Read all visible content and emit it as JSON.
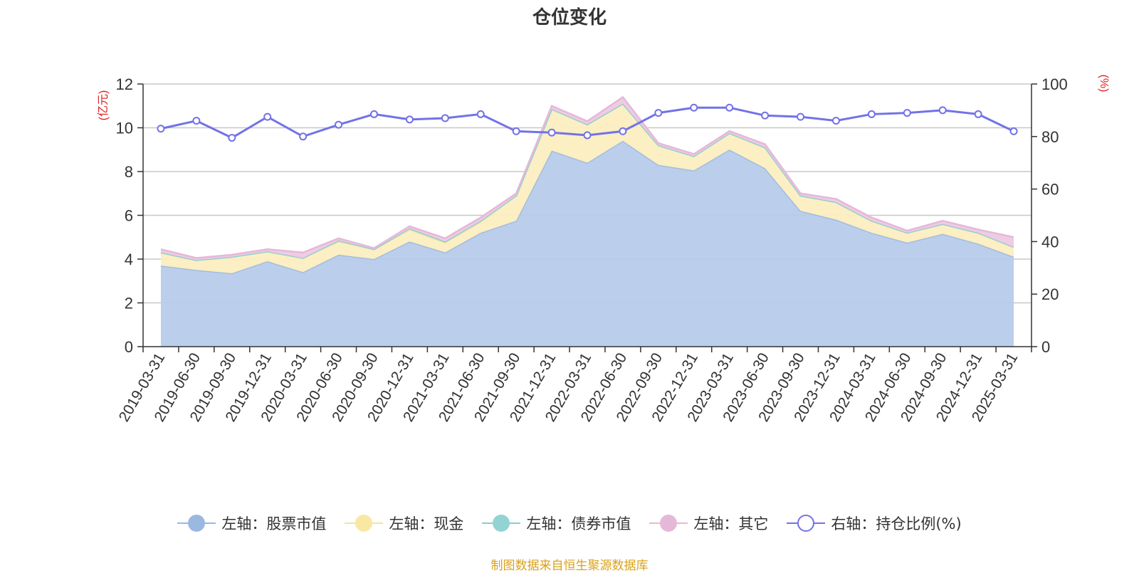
{
  "title": "仓位变化",
  "source": "制图数据来自恒生聚源数据库",
  "chart_data": {
    "type": "area",
    "title": "仓位变化",
    "left_axis": {
      "label": "(亿元)",
      "min": 0,
      "max": 12,
      "ticks": [
        0,
        2,
        4,
        6,
        8,
        10,
        12
      ]
    },
    "right_axis": {
      "label": "(%)",
      "min": 0,
      "max": 100,
      "ticks": [
        0,
        20,
        40,
        60,
        80,
        100
      ]
    },
    "grid": true,
    "legend_position": "bottom",
    "x": [
      "2019-03-31",
      "2019-06-30",
      "2019-09-30",
      "2019-12-31",
      "2020-03-31",
      "2020-06-30",
      "2020-09-30",
      "2020-12-31",
      "2021-03-31",
      "2021-06-30",
      "2021-09-30",
      "2021-12-31",
      "2022-03-31",
      "2022-06-30",
      "2022-09-30",
      "2022-12-31",
      "2023-03-31",
      "2023-06-30",
      "2023-09-30",
      "2023-12-31",
      "2024-03-31",
      "2024-06-30",
      "2024-09-30",
      "2024-12-31",
      "2025-03-31"
    ],
    "series": [
      {
        "name": "左轴：股票市值",
        "axis": "left",
        "kind": "stacked-area",
        "color": "#9bb8e0",
        "fill": "#b7cceb",
        "values": [
          3.7,
          3.5,
          3.35,
          3.9,
          3.4,
          4.2,
          4.0,
          4.8,
          4.3,
          5.2,
          5.75,
          8.95,
          8.4,
          9.4,
          8.3,
          8.05,
          9.0,
          8.15,
          6.2,
          5.8,
          5.2,
          4.75,
          5.15,
          4.7,
          4.1
        ]
      },
      {
        "name": "左轴：现金",
        "axis": "left",
        "kind": "stacked-area",
        "color": "#f4e4a0",
        "fill": "#fbeec0",
        "values": [
          0.6,
          0.45,
          0.75,
          0.45,
          0.65,
          0.6,
          0.45,
          0.55,
          0.45,
          0.5,
          1.15,
          1.9,
          1.75,
          1.7,
          0.9,
          0.65,
          0.75,
          0.95,
          0.7,
          0.8,
          0.55,
          0.45,
          0.45,
          0.5,
          0.45
        ]
      },
      {
        "name": "左轴：债券市值",
        "axis": "left",
        "kind": "stacked-area",
        "color": "#88d0d0",
        "fill": "#a3dcd9",
        "values": [
          0,
          0,
          0,
          0,
          0,
          0.05,
          0,
          0.05,
          0.05,
          0.05,
          0,
          0,
          0,
          0,
          0,
          0,
          0,
          0,
          0,
          0,
          0,
          0,
          0,
          0,
          0
        ]
      },
      {
        "name": "左轴：其它",
        "axis": "left",
        "kind": "stacked-area",
        "color": "#e6b8d8",
        "fill": "#eec9e3",
        "values": [
          0.15,
          0.1,
          0.1,
          0.1,
          0.25,
          0.1,
          0.05,
          0.1,
          0.15,
          0.15,
          0.1,
          0.15,
          0.15,
          0.3,
          0.1,
          0.1,
          0.1,
          0.15,
          0.1,
          0.15,
          0.15,
          0.1,
          0.15,
          0.15,
          0.45
        ]
      },
      {
        "name": "右轴：持仓比例(%)",
        "axis": "right",
        "kind": "line",
        "color": "#7272e8",
        "values": [
          83,
          86,
          79.5,
          87.5,
          80,
          84.5,
          88.5,
          86.5,
          87,
          88.5,
          82,
          81.5,
          80.5,
          82,
          89,
          91,
          91,
          88,
          87.5,
          86,
          88.5,
          89,
          90,
          88.5,
          82
        ]
      }
    ]
  }
}
